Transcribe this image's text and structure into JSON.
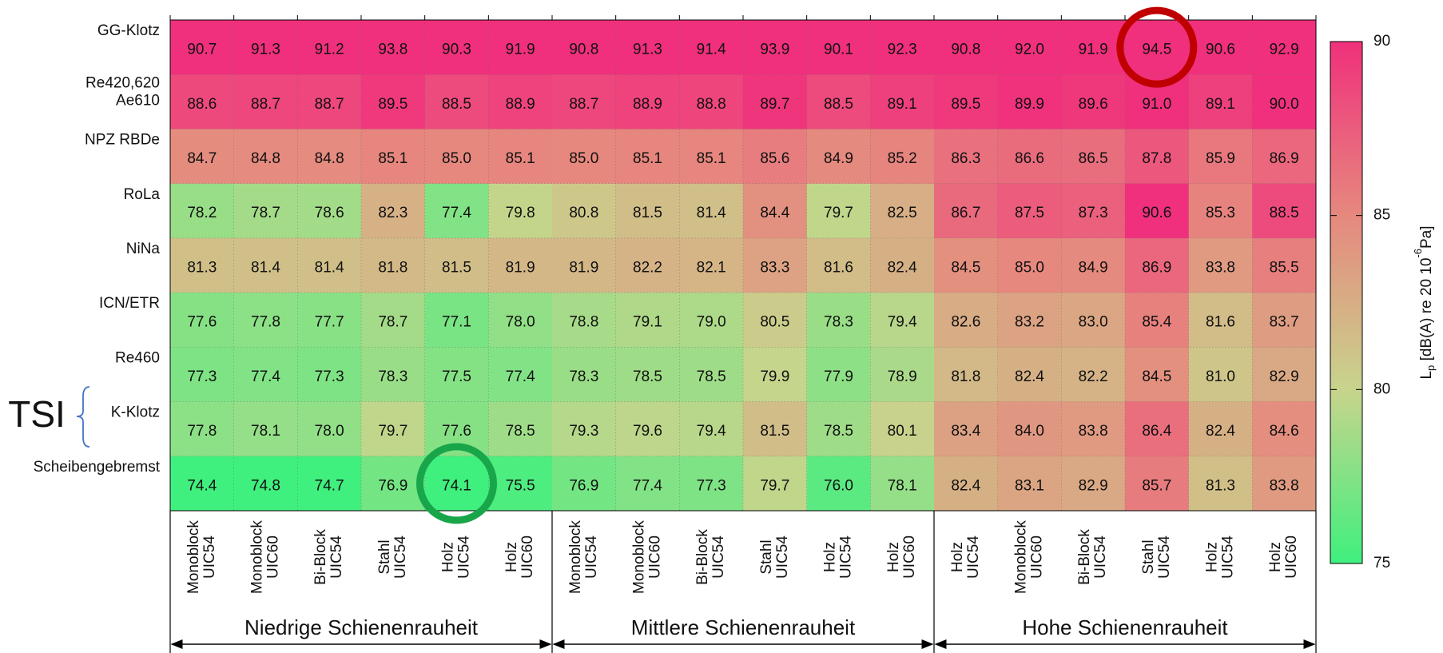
{
  "chart_data": {
    "type": "heatmap",
    "rows": [
      [
        "GG-Klotz"
      ],
      [
        "Re420,620",
        "Ae610"
      ],
      [
        "NPZ RBDe"
      ],
      [
        "RoLa"
      ],
      [
        "NiNa"
      ],
      [
        "ICN/ETR"
      ],
      [
        "Re460"
      ],
      [
        "K-Klotz"
      ],
      [
        "Scheibengebremst"
      ]
    ],
    "categories": [
      [
        "Monoblock",
        "UIC54"
      ],
      [
        "Monoblock",
        "UIC60"
      ],
      [
        "Bi-Block",
        "UIC54"
      ],
      [
        "Stahl",
        "UIC54"
      ],
      [
        "Holz",
        "UIC54"
      ],
      [
        "Holz",
        "UIC60"
      ],
      [
        "Monoblock",
        "UIC54"
      ],
      [
        "Monoblock",
        "UIC60"
      ],
      [
        "Bi-Block",
        "UIC54"
      ],
      [
        "Stahl",
        "UIC54"
      ],
      [
        "Holz",
        "UIC54"
      ],
      [
        "Holz",
        "UIC60"
      ],
      [
        "Holz",
        "UIC54"
      ],
      [
        "Monoblock",
        "UIC60"
      ],
      [
        "Bi-Block",
        "UIC54"
      ],
      [
        "Stahl",
        "UIC54"
      ],
      [
        "Holz",
        "UIC54"
      ],
      [
        "Holz",
        "UIC60"
      ]
    ],
    "groups": [
      "Niedrige Schienenrauheit",
      "Mittlere Schienenrauheit",
      "Hohe Schienenrauheit"
    ],
    "values": [
      [
        90.7,
        91.3,
        91.2,
        93.8,
        90.3,
        91.9,
        90.8,
        91.3,
        91.4,
        93.9,
        90.1,
        92.3,
        90.8,
        92.0,
        91.9,
        94.5,
        90.6,
        92.9
      ],
      [
        88.6,
        88.7,
        88.7,
        89.5,
        88.5,
        88.9,
        88.7,
        88.9,
        88.8,
        89.7,
        88.5,
        89.1,
        89.5,
        89.9,
        89.6,
        91.0,
        89.1,
        90.0
      ],
      [
        84.7,
        84.8,
        84.8,
        85.1,
        85.0,
        85.1,
        85.0,
        85.1,
        85.1,
        85.6,
        84.9,
        85.2,
        86.3,
        86.6,
        86.5,
        87.8,
        85.9,
        86.9
      ],
      [
        78.2,
        78.7,
        78.6,
        82.3,
        77.4,
        79.8,
        80.8,
        81.5,
        81.4,
        84.4,
        79.7,
        82.5,
        86.7,
        87.5,
        87.3,
        90.6,
        85.3,
        88.5
      ],
      [
        81.3,
        81.4,
        81.4,
        81.8,
        81.5,
        81.9,
        81.9,
        82.2,
        82.1,
        83.3,
        81.6,
        82.4,
        84.5,
        85.0,
        84.9,
        86.9,
        83.8,
        85.5
      ],
      [
        77.6,
        77.8,
        77.7,
        78.7,
        77.1,
        78.0,
        78.8,
        79.1,
        79.0,
        80.5,
        78.3,
        79.4,
        82.6,
        83.2,
        83.0,
        85.4,
        81.6,
        83.7
      ],
      [
        77.3,
        77.4,
        77.3,
        78.3,
        77.5,
        77.4,
        78.3,
        78.5,
        78.5,
        79.9,
        77.9,
        78.9,
        81.8,
        82.4,
        82.2,
        84.5,
        81.0,
        82.9
      ],
      [
        77.8,
        78.1,
        78.0,
        79.7,
        77.6,
        78.5,
        79.3,
        79.6,
        79.4,
        81.5,
        78.5,
        80.1,
        83.4,
        84.0,
        83.8,
        86.4,
        82.4,
        84.6
      ],
      [
        74.4,
        74.8,
        74.7,
        76.9,
        74.1,
        75.5,
        76.9,
        77.4,
        77.3,
        79.7,
        76.0,
        78.1,
        82.4,
        83.1,
        82.9,
        85.7,
        81.3,
        83.8
      ]
    ],
    "value_labels": [
      [
        "90.7",
        "91.3",
        "91.2",
        "93.8",
        "90.3",
        "91.9",
        "90.8",
        "91.3",
        "91.4",
        "93.9",
        "90.1",
        "92.3",
        "90.8",
        "92.0",
        "91.9",
        "94.5",
        "90.6",
        "92.9"
      ],
      [
        "88.6",
        "88.7",
        "88.7",
        "89.5",
        "88.5",
        "88.9",
        "88.7",
        "88.9",
        "88.8",
        "89.7",
        "88.5",
        "89.1",
        "89.5",
        "89.9",
        "89.6",
        "91.0",
        "89.1",
        "90.0"
      ],
      [
        "84.7",
        "84.8",
        "84.8",
        "85.1",
        "85.0",
        "85.1",
        "85.0",
        "85.1",
        "85.1",
        "85.6",
        "84.9",
        "85.2",
        "86.3",
        "86.6",
        "86.5",
        "87.8",
        "85.9",
        "86.9"
      ],
      [
        "78.2",
        "78.7",
        "78.6",
        "82.3",
        "77.4",
        "79.8",
        "80.8",
        "81.5",
        "81.4",
        "84.4",
        "79.7",
        "82.5",
        "86.7",
        "87.5",
        "87.3",
        "90.6",
        "85.3",
        "88.5"
      ],
      [
        "81.3",
        "81.4",
        "81.4",
        "81.8",
        "81.5",
        "81.9",
        "81.9",
        "82.2",
        "82.1",
        "83.3",
        "81.6",
        "82.4",
        "84.5",
        "85.0",
        "84.9",
        "86.9",
        "83.8",
        "85.5"
      ],
      [
        "77.6",
        "77.8",
        "77.7",
        "78.7",
        "77.1",
        "78.0",
        "78.8",
        "79.1",
        "79.0",
        "80.5",
        "78.3",
        "79.4",
        "82.6",
        "83.2",
        "83.0",
        "85.4",
        "81.6",
        "83.7"
      ],
      [
        "77.3",
        "77.4",
        "77.3",
        "78.3",
        "77.5",
        "77.4",
        "78.3",
        "78.5",
        "78.5",
        "79.9",
        "77.9",
        "78.9",
        "81.8",
        "82.4",
        "82.2",
        "84.5",
        "81.0",
        "82.9"
      ],
      [
        "77.8",
        "78.1",
        "78.0",
        "79.7",
        "77.6",
        "78.5",
        "79.3",
        "79.6",
        "79.4",
        "81.5",
        "78.5",
        "80.1",
        "83.4",
        "84.0",
        "83.8",
        "86.4",
        "82.4",
        "84.6"
      ],
      [
        "74.4",
        "74.8",
        "74.7",
        "76.9",
        "74.1",
        "75.5",
        "76.9",
        "77.4",
        "77.3",
        "79.7",
        "76.0",
        "78.1",
        "82.4",
        "83.1",
        "82.9",
        "85.7",
        "81.3",
        "83.8"
      ]
    ],
    "zlim": [
      75,
      90
    ],
    "zticks": [
      75,
      80,
      85,
      90
    ],
    "colorscale": [
      "#3ff07e",
      "#c8d48c",
      "#e6887e",
      "#f0307c"
    ],
    "colorbar_label": [
      "L",
      "p",
      " [dB(A) re 20 10",
      "-6",
      "Pa]"
    ],
    "annotation": "TSI",
    "grid": true
  }
}
